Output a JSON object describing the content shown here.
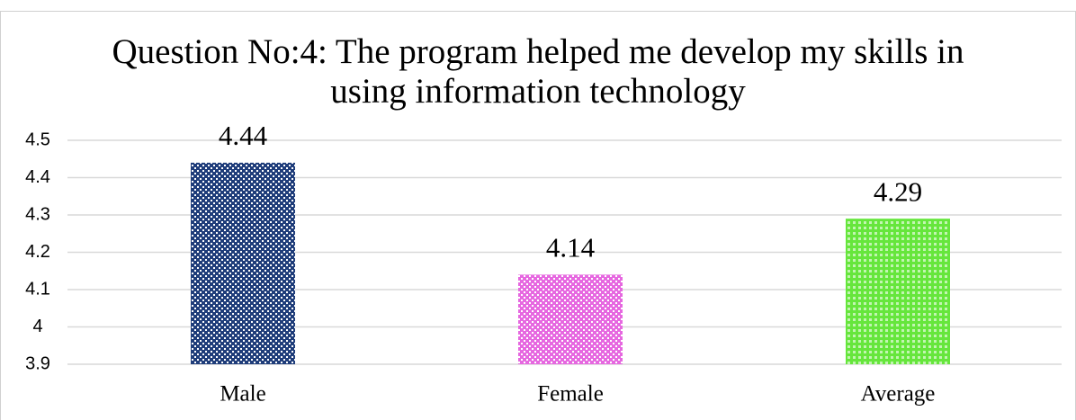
{
  "chart_data": {
    "type": "bar",
    "title": "Question No:4: The program helped me develop my skills in using information technology",
    "categories": [
      "Male",
      "Female",
      "Average"
    ],
    "values": [
      4.44,
      4.14,
      4.29
    ],
    "colors": [
      "#1f3d7a",
      "#e668e0",
      "#66e63c"
    ],
    "ylim": [
      3.9,
      4.5
    ],
    "yticks": [
      3.9,
      4,
      4.1,
      4.2,
      4.3,
      4.4,
      4.5
    ],
    "grid": true
  }
}
